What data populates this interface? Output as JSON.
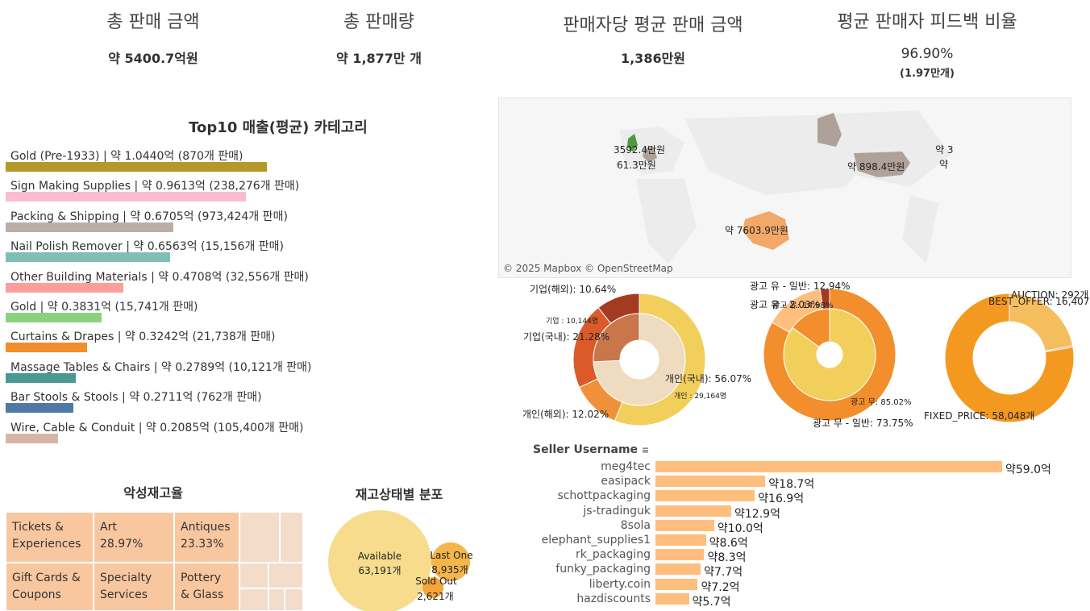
{
  "kpis": {
    "total_sales": {
      "title": "총 판매 금액",
      "value": "약 5400.7억원"
    },
    "total_volume": {
      "title": "총 판매량",
      "value": "약 1,877만 개"
    },
    "avg_per_seller": {
      "title": "판매자당 평균 판매 금액",
      "value": "1,386만원"
    },
    "feedback": {
      "title": "평균 판매자 피드백 비율",
      "value": "96.90%",
      "sub": "(1.97만개)"
    }
  },
  "colors": {
    "gold": "#b5982a",
    "pink": "#f9bcd2",
    "taupe": "#bcaea6",
    "teal": "#7fbfb5",
    "salmon": "#ff9d9a",
    "green": "#8cd17d",
    "orange": "#f28e2b",
    "dteal": "#499894",
    "blue": "#4e79a7",
    "tan": "#d7b5a6",
    "peach": "#ffbe7d",
    "treemap": "#f9c79f"
  },
  "top10": {
    "title": "Top10 매출(평균) 카테고리",
    "chart_data": {
      "type": "bar",
      "orientation": "horizontal",
      "categories": [
        "Gold (Pre-1933)",
        "Sign Making Supplies",
        "Packing & Shipping",
        "Nail Polish Remover",
        "Other Building Materials",
        "Gold",
        "Curtains & Drapes",
        "Massage Tables & Chairs",
        "Bar Stools & Stools",
        "Wire, Cable & Conduit"
      ],
      "values": [
        1.044,
        0.9613,
        0.6705,
        0.6563,
        0.4708,
        0.3831,
        0.3242,
        0.2789,
        0.2711,
        0.2085
      ],
      "labels": [
        "Gold (Pre-1933) |  약 1.0440억 (870개 판매)",
        "Sign Making Supplies |  약 0.9613억 (238,276개 판매)",
        "Packing & Shipping |  약 0.6705억 (973,424개 판매)",
        "Nail Polish Remover |  약 0.6563억 (15,156개 판매)",
        "Other Building Materials |  약 0.4708억 (32,556개 판매)",
        "Gold |  약 0.3831억 (15,741개 판매)",
        "Curtains & Drapes |  약 0.3242억 (21,738개 판매)",
        "Massage Tables & Chairs |  약 0.2789억 (10,121개 판매)",
        "Bar Stools & Stools |  약 0.2711억 (762개 판매)",
        "Wire, Cable & Conduit |  약 0.2085억 (105,400개 판매)"
      ],
      "colors": [
        "#b5982a",
        "#f9bcd2",
        "#bcaea6",
        "#7fbfb5",
        "#ff9d9a",
        "#8cd17d",
        "#f28e2b",
        "#499894",
        "#4e79a7",
        "#d7b5a6"
      ]
    }
  },
  "map": {
    "attribution": "© 2025 Mapbox © OpenStreetMap",
    "labels": [
      "약 898.4만원",
      "약 7603.9만원",
      "3592.4만원",
      "61.3만원",
      "약 3",
      "약"
    ]
  },
  "donut1": {
    "chart_data": {
      "type": "pie",
      "inner": {
        "labels": [
          "개인",
          "기업"
        ],
        "values": [
          29164,
          10144
        ],
        "label_texts": [
          "개인 : 29,164명",
          "기업 : 10,144명"
        ]
      },
      "outer": {
        "labels": [
          "개인(국내)",
          "개인(해외)",
          "기업(국내)",
          "기업(해외)"
        ],
        "values": [
          56.07,
          12.02,
          21.28,
          10.64
        ],
        "label_texts": [
          "개인(국내): 56.07%",
          "개인(해외): 12.02%",
          "기업(국내): 21.28%",
          "기업(해외): 10.64%"
        ]
      }
    }
  },
  "donut2": {
    "chart_data": {
      "type": "pie",
      "inner": {
        "labels": [
          "광고 무",
          "광고 유"
        ],
        "values": [
          85.02,
          14.98
        ],
        "label_texts": [
          "광고 무: 85.02%",
          "광고 유: 14.98%"
        ]
      },
      "outer": {
        "labels": [
          "광고 무 - 일반",
          "광고 유 - 일반",
          "광고 유 - 2.03%"
        ],
        "values": [
          73.75,
          12.94,
          2.03
        ],
        "label_texts": [
          "광고 무 - 일반: 73.75%",
          "광고 유 - 일반: 12.94%",
          "광고 유 - 2.03%"
        ]
      }
    }
  },
  "donut3": {
    "chart_data": {
      "type": "pie",
      "labels": [
        "FIXED_PRICE",
        "BEST_OFFER",
        "AUCTION"
      ],
      "values": [
        58048,
        16407,
        292
      ],
      "label_texts": [
        "FIXED_PRICE: 58,048개",
        "BEST_OFFER: 16,407개",
        "AUCTION: 292개"
      ]
    }
  },
  "sellers": {
    "header": "Seller Username",
    "chart_data": {
      "type": "bar",
      "orientation": "horizontal",
      "categories": [
        "meg4tec",
        "easipack",
        "schottpackaging",
        "js-tradinguk",
        "8sola",
        "elephant_supplies1",
        "rk_packaging",
        "funky_packaging",
        "liberty.coin",
        "hazdiscounts"
      ],
      "values": [
        59.0,
        18.7,
        16.9,
        12.9,
        10.0,
        8.6,
        8.3,
        7.7,
        7.2,
        5.7
      ],
      "labels": [
        "약59.0억",
        "약18.7억",
        "약16.9억",
        "약12.9억",
        "약10.0억",
        "약8.6억",
        "약8.3억",
        "약7.7억",
        "약7.2억",
        "약5.7억"
      ]
    }
  },
  "treemap": {
    "title": "악성재고율",
    "cells": [
      {
        "label": "Tickets & Experiences",
        "value": ""
      },
      {
        "label": "Art",
        "value": "28.97%"
      },
      {
        "label": "Antiques",
        "value": "23.33%"
      },
      {
        "label": "Gift Cards & Coupons",
        "value": ""
      },
      {
        "label": "Specialty Services",
        "value": ""
      },
      {
        "label": "Pottery & Glass",
        "value": ""
      }
    ]
  },
  "bubbles": {
    "title": "재고상태별 분포",
    "chart_data": {
      "type": "bubble",
      "labels": [
        "Available",
        "Last One",
        "Sold Out"
      ],
      "values": [
        63191,
        8935,
        2621
      ],
      "label_texts": [
        "63,191개",
        "8,935개",
        "2,621개"
      ]
    }
  }
}
